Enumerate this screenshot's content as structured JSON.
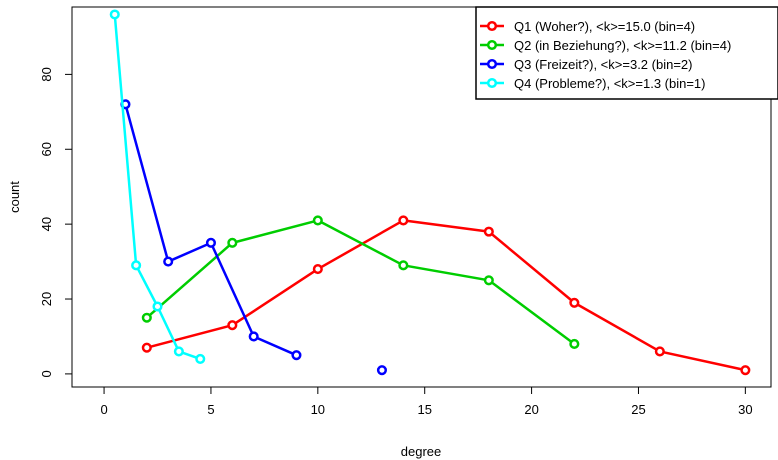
{
  "chart_data": {
    "type": "line",
    "xlabel": "degree",
    "ylabel": "count",
    "xlim": [
      -1.5,
      31.2
    ],
    "ylim": [
      -3.5,
      98
    ],
    "xticks": [
      0,
      5,
      10,
      15,
      20,
      25,
      30
    ],
    "yticks": [
      0,
      20,
      40,
      60,
      80
    ],
    "grid": false,
    "legend_position": "top-right",
    "series": [
      {
        "name": "Q1 (Woher?), <k>=15.0 (bin=4)",
        "color": "#ff0000",
        "x": [
          2,
          6,
          10,
          14,
          18,
          22,
          26,
          30
        ],
        "y": [
          7,
          13,
          28,
          41,
          38,
          19,
          6,
          1
        ]
      },
      {
        "name": "Q2 (in Beziehung?), <k>=11.2 (bin=4)",
        "color": "#00cd00",
        "x": [
          2,
          6,
          10,
          14,
          18,
          22
        ],
        "y": [
          15,
          35,
          41,
          29,
          25,
          8
        ]
      },
      {
        "name": "Q3 (Freizeit?), <k>=3.2 (bin=2)",
        "color": "#0000ff",
        "x": [
          1,
          3,
          5,
          7,
          9
        ],
        "y": [
          72,
          30,
          35,
          10,
          5
        ],
        "extra_points": [
          {
            "x": 13,
            "y": 1
          }
        ]
      },
      {
        "name": "Q4 (Probleme?), <k>=1.3 (bin=1)",
        "color": "#00ffff",
        "x": [
          0.5,
          1.5,
          2.5,
          3.5,
          4.5
        ],
        "y": [
          96,
          29,
          18,
          6,
          4
        ]
      }
    ]
  }
}
